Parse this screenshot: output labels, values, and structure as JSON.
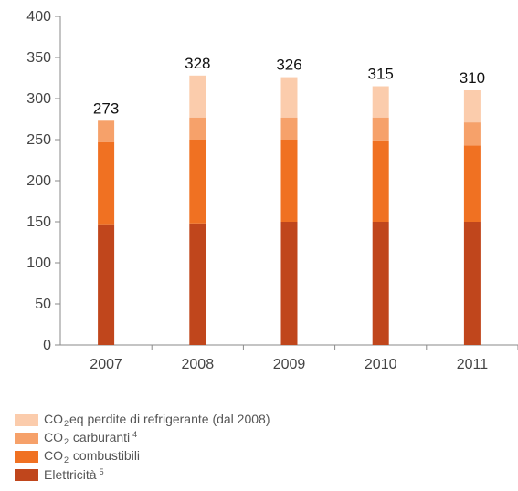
{
  "chart_data": {
    "type": "bar",
    "stacked": true,
    "categories": [
      "2007",
      "2008",
      "2009",
      "2010",
      "2011"
    ],
    "series": [
      {
        "name": "Elettricità",
        "note": "5",
        "color": "#c0461c",
        "values": [
          147,
          148,
          150,
          150,
          150
        ]
      },
      {
        "name": "CO2 combustibili",
        "color": "#f07122",
        "values": [
          100,
          102,
          100,
          99,
          93
        ]
      },
      {
        "name": "CO2 carburanti",
        "note": "4",
        "color": "#f6a16a",
        "values": [
          26,
          27,
          27,
          28,
          28
        ]
      },
      {
        "name": "CO2eq perdite di refrigerante (dal 2008)",
        "color": "#fbccac",
        "values": [
          0,
          51,
          49,
          38,
          39
        ]
      }
    ],
    "totals": [
      "273",
      "328",
      "326",
      "315",
      "310"
    ],
    "ylim": [
      0,
      400
    ],
    "yticks": [
      "0",
      "50",
      "100",
      "150",
      "200",
      "250",
      "300",
      "350",
      "400"
    ],
    "grid": false,
    "legend_position": "bottom-left"
  },
  "legend": [
    {
      "pre": "CO",
      "sub": "2",
      "post": "eq perdite di refrigerante (dal 2008)",
      "sup": "",
      "color": "#fbccac"
    },
    {
      "pre": "CO",
      "sub": "2",
      "post": " carburanti",
      "sup": "4",
      "color": "#f6a16a"
    },
    {
      "pre": "CO",
      "sub": "2",
      "post": " combustibili",
      "sup": "",
      "color": "#f07122"
    },
    {
      "pre": "Elettricità",
      "sub": "",
      "post": "",
      "sup": "5",
      "color": "#c0461c"
    }
  ]
}
